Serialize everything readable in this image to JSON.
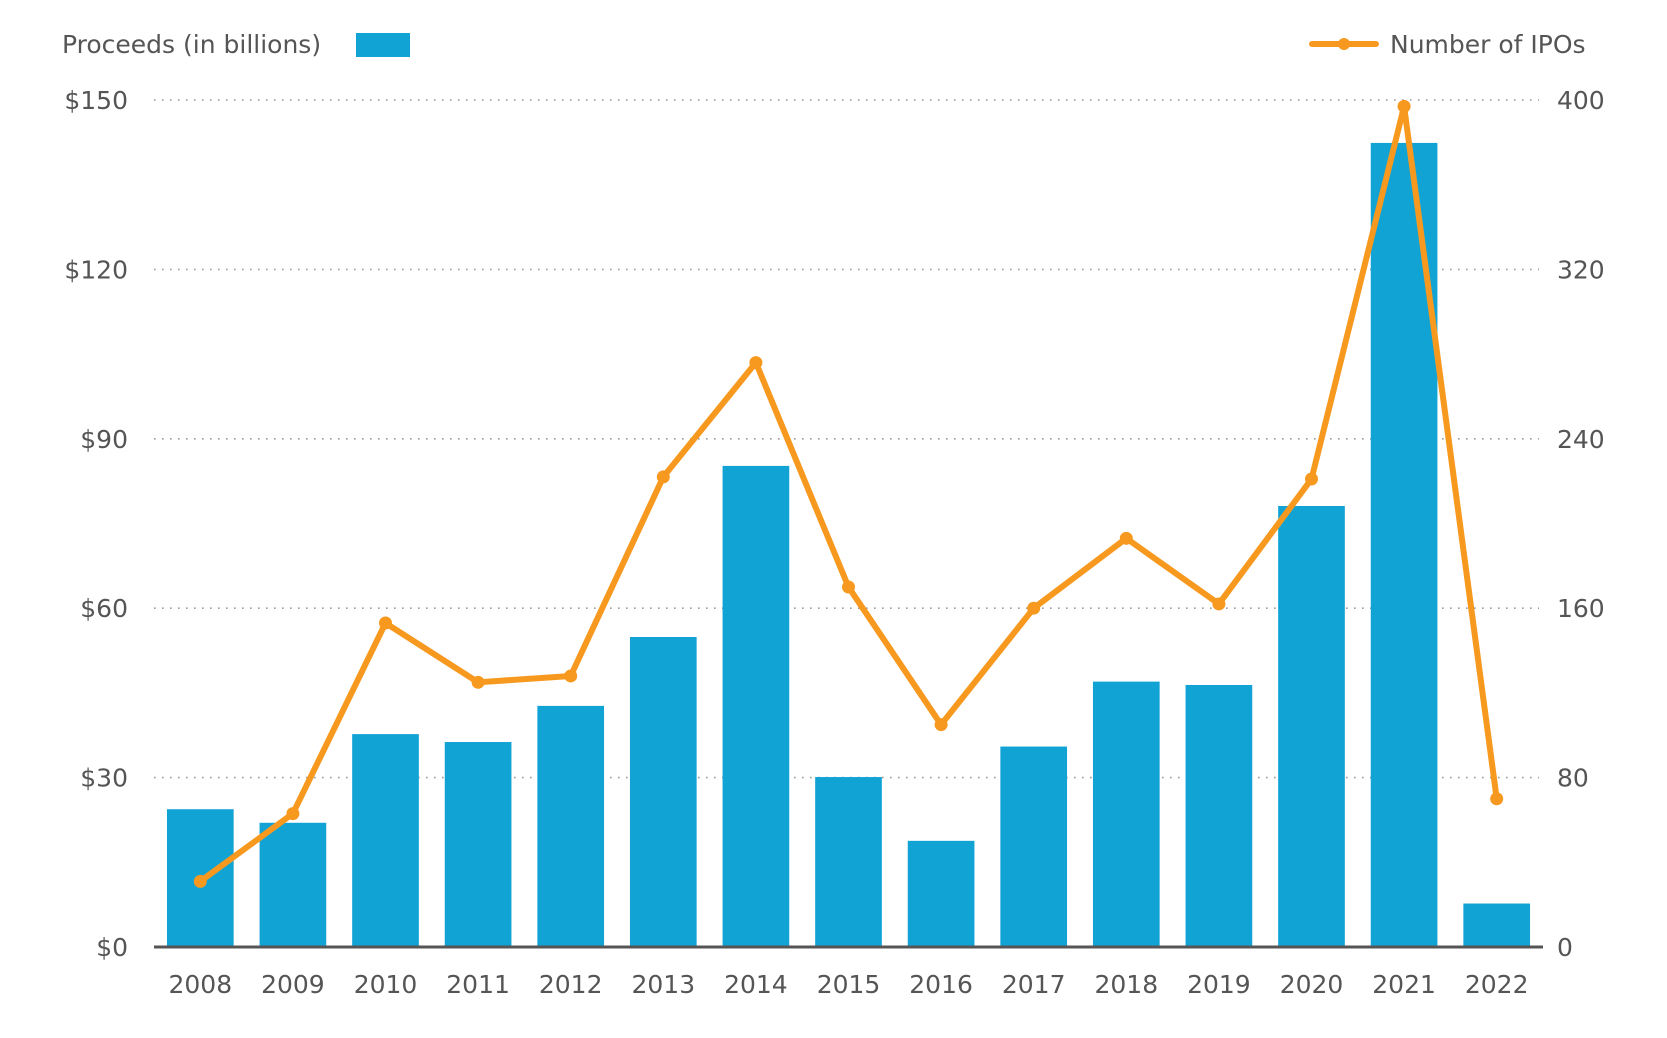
{
  "chart_data": {
    "type": "bar+line",
    "title": "",
    "categories": [
      "2008",
      "2009",
      "2010",
      "2011",
      "2012",
      "2013",
      "2014",
      "2015",
      "2016",
      "2017",
      "2018",
      "2019",
      "2020",
      "2021",
      "2022"
    ],
    "series": [
      {
        "name": "Proceeds (in billions)",
        "type": "bar",
        "axis": "left",
        "color": "#12A3D5",
        "values": [
          24.4,
          22.0,
          37.7,
          36.3,
          42.7,
          54.9,
          85.2,
          30.1,
          18.8,
          35.5,
          47.0,
          46.4,
          78.1,
          142.4,
          7.7
        ]
      },
      {
        "name": "Number of IPOs",
        "type": "line",
        "axis": "right",
        "color": "#F7991F",
        "values": [
          31,
          63,
          153,
          125,
          128,
          222,
          276,
          170,
          105,
          160,
          193,
          162,
          221,
          397,
          70
        ]
      }
    ],
    "left_axis": {
      "label": "Proceeds (in billions)",
      "ylim": [
        0,
        150
      ],
      "ticks": [
        0,
        30,
        60,
        90,
        120,
        150
      ],
      "tick_labels": [
        "$0",
        "$30",
        "$60",
        "$90",
        "$120",
        "$150"
      ]
    },
    "right_axis": {
      "label": "Number of IPOs",
      "ylim": [
        0,
        400
      ],
      "ticks": [
        0,
        80,
        160,
        240,
        320,
        400
      ],
      "tick_labels": [
        "0",
        "80",
        "160",
        "240",
        "320",
        "400"
      ]
    },
    "grid": true,
    "legend": {
      "bar_entry": {
        "label": "Proceeds (in billions)",
        "placement": "top-left"
      },
      "line_entry": {
        "label": "Number of IPOs",
        "placement": "top-right"
      }
    },
    "colors": {
      "text": "#555555",
      "grid": "#9a9a9a",
      "axis": "#555555"
    }
  }
}
